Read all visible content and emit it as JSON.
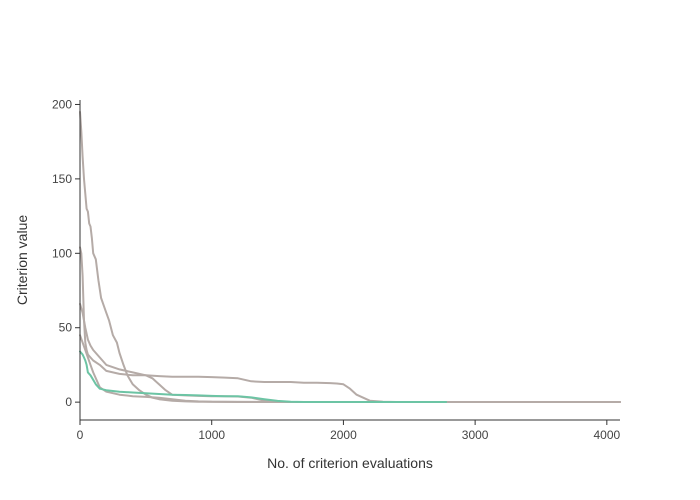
{
  "chart_data": {
    "type": "line",
    "title": "",
    "xlabel": "No. of criterion evaluations",
    "ylabel": "Criterion value",
    "xlim": [
      0,
      4100
    ],
    "ylim": [
      -12,
      203
    ],
    "x_ticks": [
      0,
      1000,
      2000,
      3000,
      4000
    ],
    "x_tick_labels": [
      "0",
      "1000",
      "2000",
      "3000",
      "4000"
    ],
    "y_ticks": [
      0,
      50,
      100,
      150,
      200
    ],
    "y_tick_labels": [
      "0",
      "50",
      "100",
      "150",
      "200"
    ],
    "grid": false,
    "legend": "none",
    "colors": {
      "gray": "#b5aba7",
      "green": "#6cc4a4",
      "axis": "#333333"
    },
    "series": [
      {
        "color": "#b5aba7",
        "x": [
          0,
          10,
          20,
          30,
          40,
          50,
          60,
          70,
          80,
          90,
          100,
          120,
          140,
          160,
          180,
          200,
          220,
          250,
          280,
          300,
          330,
          360,
          400,
          450,
          500,
          550,
          600,
          700,
          800,
          900,
          1000,
          1500,
          2000,
          2500,
          3000,
          3500,
          4100
        ],
        "y": [
          195,
          182,
          165,
          150,
          140,
          130,
          128,
          120,
          118,
          110,
          100,
          96,
          82,
          70,
          65,
          60,
          55,
          45,
          40,
          33,
          25,
          18,
          12,
          8,
          5,
          3,
          2,
          1,
          0.5,
          0.3,
          0.2,
          0.1,
          0.1,
          0.1,
          0.1,
          0.1,
          0.1
        ]
      },
      {
        "color": "#b5aba7",
        "x": [
          0,
          10,
          20,
          30,
          40,
          50,
          60,
          80,
          100,
          150,
          200,
          300,
          400,
          500,
          600,
          700,
          800,
          900,
          1000,
          1100,
          1200,
          1300,
          1400,
          1500,
          1600,
          1700,
          1800,
          1900,
          1950,
          2000,
          2050,
          2100,
          2150,
          2200,
          2300,
          2400,
          2500,
          3000,
          3500,
          4100
        ],
        "y": [
          104,
          100,
          85,
          55,
          40,
          35,
          32,
          30,
          28,
          25,
          21,
          19,
          18,
          18,
          17.5,
          17,
          17,
          17,
          16.8,
          16.5,
          16,
          14,
          13.5,
          13.5,
          13.5,
          13,
          13,
          12.8,
          12.5,
          12,
          9,
          5,
          3,
          1,
          0.3,
          0.1,
          0.1,
          0.1,
          0.1,
          0.1
        ]
      },
      {
        "color": "#b5aba7",
        "x": [
          0,
          20,
          40,
          60,
          80,
          100,
          150,
          200,
          300,
          400,
          500,
          550,
          600,
          650,
          700,
          800,
          900,
          1000,
          1100,
          1200,
          1300,
          1400,
          1500,
          1600,
          2000,
          2500,
          3000,
          4100
        ],
        "y": [
          66,
          60,
          50,
          42,
          38,
          35,
          30,
          25,
          22,
          20,
          18,
          16,
          12,
          8,
          5,
          4.5,
          4.2,
          4,
          4,
          3.8,
          3,
          1,
          0.3,
          0.1,
          0.1,
          0.1,
          0.1,
          0.1
        ]
      },
      {
        "color": "#b5aba7",
        "x": [
          0,
          20,
          40,
          60,
          80,
          100,
          150,
          200,
          300,
          400,
          500,
          600,
          700,
          800,
          900,
          1000,
          1200,
          1500,
          2000,
          3000,
          4100
        ],
        "y": [
          45,
          40,
          35,
          30,
          25,
          20,
          10,
          7,
          5,
          4,
          3.5,
          3,
          2,
          1,
          0.5,
          0.2,
          0.1,
          0.1,
          0.1,
          0.1,
          0.1
        ]
      },
      {
        "color": "#6cc4a4",
        "x": [
          0,
          10,
          20,
          30,
          40,
          50,
          60,
          80,
          100,
          120,
          150,
          200,
          300,
          400,
          500,
          600,
          700,
          800,
          900,
          1000,
          1100,
          1200,
          1300,
          1400,
          1500,
          1600,
          1700,
          2000,
          2500,
          2780
        ],
        "y": [
          34,
          33,
          32,
          30,
          28,
          25,
          20,
          18,
          15,
          12,
          9,
          8,
          7,
          6.5,
          6,
          5.5,
          5,
          4.8,
          4.5,
          4.2,
          4,
          4,
          3.2,
          2,
          0.8,
          0.2,
          0.1,
          0.1,
          0.1,
          0.1
        ]
      }
    ]
  }
}
